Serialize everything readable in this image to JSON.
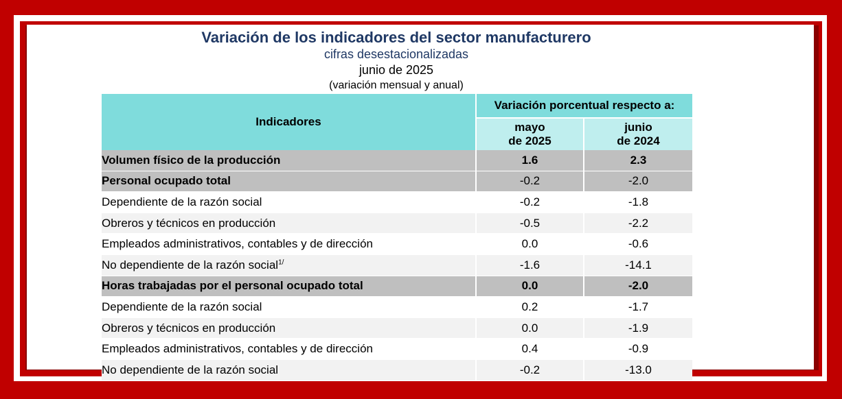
{
  "title": "Variación de los indicadores del sector manufacturero",
  "subtitle": "cifras desestacionalizadas",
  "period": "junio de 2025",
  "note": "(variación mensual y anual)",
  "table": {
    "header_indicadores": "Indicadores",
    "header_group": "Variación porcentual respecto a:",
    "header_col1_line1": "mayo",
    "header_col1_line2": "de 2025",
    "header_col2_line1": "junio",
    "header_col2_line2": "de 2024",
    "rows": [
      {
        "label": "Volumen físico de la producción",
        "mayo": "1.6",
        "junio": "2.3"
      },
      {
        "label": "Personal ocupado total",
        "mayo": "-0.2",
        "junio": "-2.0"
      },
      {
        "label": "Dependiente de la razón social",
        "mayo": "-0.2",
        "junio": "-1.8"
      },
      {
        "label": "Obreros y técnicos en producción",
        "mayo": "-0.5",
        "junio": "-2.2"
      },
      {
        "label": "Empleados administrativos, contables y de dirección",
        "mayo": "0.0",
        "junio": "-0.6"
      },
      {
        "label": "No dependiente de la razón social",
        "footnote": "1/",
        "mayo": "-1.6",
        "junio": "-14.1"
      },
      {
        "label": "Horas trabajadas por el personal ocupado total",
        "mayo": "0.0",
        "junio": "-2.0"
      },
      {
        "label": "Dependiente de la razón social",
        "mayo": "0.2",
        "junio": "-1.7"
      },
      {
        "label": "Obreros y técnicos en producción",
        "mayo": "0.0",
        "junio": "-1.9"
      },
      {
        "label": "Empleados administrativos, contables y de dirección",
        "mayo": "0.4",
        "junio": "-0.9"
      },
      {
        "label": "No dependiente de la razón social",
        "mayo": "-0.2",
        "junio": "-13.0"
      }
    ]
  },
  "colors": {
    "frame_red": "#c00000",
    "title_blue": "#1f3864",
    "header_teal": "#7fdcdc",
    "header_light_teal": "#bfeeee",
    "group_row_gray": "#bfbfbf",
    "alt_row_gray": "#f2f2f2"
  }
}
